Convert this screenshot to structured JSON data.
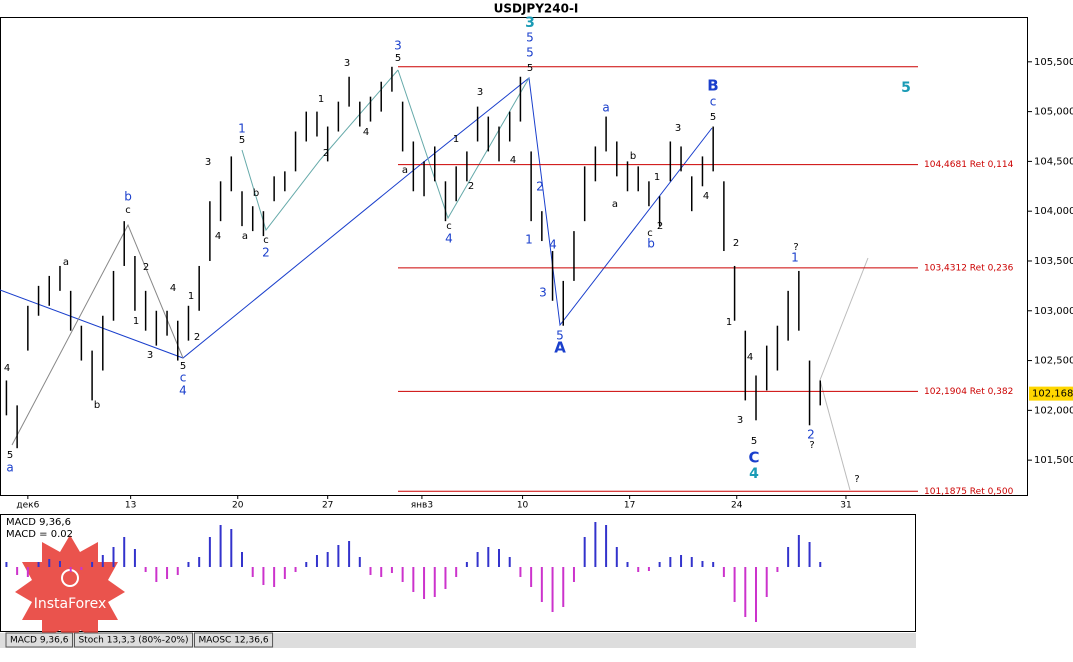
{
  "chart_data": [
    {
      "type": "ohlc",
      "title": "USDJPY240-I",
      "x": [
        -1,
        -0.5,
        0,
        0.5,
        1,
        1.5,
        2,
        2.5,
        3,
        3.5,
        4,
        4.5,
        5,
        5.5,
        6,
        6.5,
        7,
        7.5,
        8,
        8.5,
        9,
        9.5,
        10,
        10.5,
        11,
        11.5,
        12,
        12.5,
        13,
        13.5,
        14,
        14.5,
        15,
        15.5,
        16,
        16.5,
        17,
        17.5,
        18,
        18.5,
        19,
        19.5,
        20,
        20.5,
        21,
        21.5,
        22,
        22.5,
        23,
        23.5,
        24,
        24.5,
        25,
        25.5,
        26,
        26.5,
        27,
        27.5,
        28,
        28.5,
        29,
        29.5,
        30,
        30.5,
        31,
        31.5,
        32,
        32.5,
        33,
        33.5,
        34,
        34.5,
        35,
        35.5,
        36,
        36.5,
        37
      ],
      "low": [
        101.95,
        101.62,
        102.6,
        102.95,
        103.05,
        103.2,
        102.8,
        102.5,
        102.1,
        102.4,
        102.9,
        103.45,
        103.0,
        102.8,
        102.65,
        102.75,
        102.5,
        102.7,
        103.0,
        103.5,
        103.9,
        104.2,
        103.85,
        103.8,
        103.75,
        104.1,
        104.2,
        104.4,
        104.7,
        104.75,
        104.5,
        104.8,
        105.05,
        104.85,
        104.9,
        105.0,
        105.2,
        104.6,
        104.2,
        104.15,
        104.3,
        103.9,
        104.1,
        104.3,
        104.7,
        104.6,
        104.5,
        104.7,
        104.9,
        103.9,
        103.7,
        103.1,
        102.85,
        103.3,
        103.9,
        104.3,
        104.6,
        104.35,
        104.2,
        104.2,
        104.05,
        103.85,
        104.3,
        104.4,
        104.0,
        104.25,
        104.4,
        103.6,
        102.9,
        102.1,
        101.9,
        102.2,
        102.4,
        102.7,
        102.8,
        101.85,
        102.05
      ],
      "high": [
        102.3,
        102.05,
        103.05,
        103.25,
        103.35,
        103.45,
        103.2,
        102.85,
        102.6,
        102.95,
        103.4,
        103.9,
        103.55,
        103.2,
        103.0,
        103.0,
        102.9,
        103.05,
        103.45,
        104.1,
        104.3,
        104.55,
        104.2,
        104.05,
        104.0,
        104.35,
        104.4,
        104.8,
        105.0,
        105.0,
        104.85,
        105.1,
        105.35,
        105.1,
        105.15,
        105.3,
        105.45,
        105.1,
        104.7,
        104.5,
        104.65,
        104.3,
        104.45,
        104.6,
        105.05,
        104.95,
        104.85,
        105.0,
        105.35,
        104.6,
        104.0,
        103.6,
        103.3,
        103.8,
        104.45,
        104.65,
        104.95,
        104.7,
        104.5,
        104.45,
        104.3,
        104.15,
        104.7,
        104.65,
        104.35,
        104.55,
        104.85,
        104.3,
        103.45,
        102.8,
        102.35,
        102.65,
        102.85,
        103.2,
        103.4,
        102.5,
        102.3
      ],
      "color": "#000000",
      "xlim": [
        -1.3,
        46.7
      ],
      "xticks": [
        {
          "value": 0,
          "label": "дек6"
        },
        {
          "value": 4.8,
          "label": "13"
        },
        {
          "value": 9.8,
          "label": "20"
        },
        {
          "value": 14,
          "label": "27"
        },
        {
          "value": 18.4,
          "label": "янв3"
        },
        {
          "value": 23.1,
          "label": "10"
        },
        {
          "value": 28.1,
          "label": "17"
        },
        {
          "value": 33.1,
          "label": "24"
        },
        {
          "value": 38.2,
          "label": "31"
        }
      ],
      "ylim": [
        101.15,
        105.95
      ],
      "yticks": [
        {
          "value": 101.5,
          "label": "101,500"
        },
        {
          "value": 102,
          "label": "102,000"
        },
        {
          "value": 102.5,
          "label": "102,500"
        },
        {
          "value": 103,
          "label": "103,000"
        },
        {
          "value": 103.5,
          "label": "103,500"
        },
        {
          "value": 104,
          "label": "104,000"
        },
        {
          "value": 104.5,
          "label": "104,500"
        },
        {
          "value": 105,
          "label": "105,000"
        },
        {
          "value": 105.5,
          "label": "105,500"
        }
      ],
      "last_price": {
        "value": 102.168,
        "label": "102,168"
      },
      "levels": [
        {
          "value": 105.45
        },
        {
          "value": 104.4681,
          "label": "104,4681 Ret 0,114"
        },
        {
          "value": 103.4312,
          "label": "103,4312 Ret 0,236"
        },
        {
          "value": 102.1904,
          "label": "102,1904 Ret 0,382"
        },
        {
          "value": 101.1875,
          "label": "101,1875 Ret 0,500"
        }
      ],
      "level_color": "#cc0000",
      "annotations": [
        "4",
        "5",
        "a",
        "a",
        "b",
        "b",
        "c",
        "2",
        "1",
        "3",
        "4",
        "5",
        "c",
        "4",
        "1",
        "2",
        "3",
        "4",
        "1",
        "5",
        "a",
        "b",
        "c",
        "2",
        "1",
        "2",
        "3",
        "4",
        "3",
        "5",
        "a",
        "1",
        "2",
        "c",
        "4",
        "3",
        "4",
        "3",
        "5",
        "5",
        "5",
        "2",
        "1",
        "4",
        "3",
        "5",
        "A",
        "a",
        "a",
        "b",
        "1",
        "c",
        "b",
        "2",
        "3",
        "4",
        "B",
        "c",
        "5",
        "2",
        "1",
        "4",
        "3",
        "5",
        "C",
        "4",
        "?",
        "1",
        "2",
        "?",
        "?",
        "5"
      ]
    },
    {
      "type": "bar",
      "title": "MACD 9,36,6",
      "subtitle": "MACD = 0.02",
      "x": [
        -1,
        -0.5,
        0,
        0.5,
        1,
        1.5,
        2,
        2.5,
        3,
        3.5,
        4,
        4.5,
        5,
        5.5,
        6,
        6.5,
        7,
        7.5,
        8,
        8.5,
        9,
        9.5,
        10,
        10.5,
        11,
        11.5,
        12,
        12.5,
        13,
        13.5,
        14,
        14.5,
        15,
        15.5,
        16,
        16.5,
        17,
        17.5,
        18,
        18.5,
        19,
        19.5,
        20,
        20.5,
        21,
        21.5,
        22,
        22.5,
        23,
        23.5,
        24,
        24.5,
        25,
        25.5,
        26,
        26.5,
        27,
        27.5,
        28,
        28.5,
        29,
        29.5,
        30,
        30.5,
        31,
        31.5,
        32,
        32.5,
        33,
        33.5,
        34,
        34.5,
        35,
        35.5,
        36,
        36.5,
        37
      ],
      "values": [
        0.05,
        -0.08,
        -0.1,
        0.05,
        0.08,
        0.06,
        -0.05,
        -0.03,
        0.05,
        0.12,
        0.2,
        0.3,
        0.18,
        -0.05,
        -0.15,
        -0.12,
        -0.08,
        0.05,
        0.1,
        0.3,
        0.42,
        0.38,
        0.15,
        -0.1,
        -0.18,
        -0.2,
        -0.12,
        -0.05,
        0.05,
        0.12,
        0.15,
        0.22,
        0.26,
        0.1,
        -0.08,
        -0.1,
        -0.06,
        -0.15,
        -0.25,
        -0.32,
        -0.3,
        -0.22,
        -0.1,
        0.05,
        0.15,
        0.2,
        0.18,
        0.1,
        -0.1,
        -0.2,
        -0.35,
        -0.45,
        -0.4,
        -0.15,
        0.3,
        0.45,
        0.42,
        0.2,
        0.05,
        -0.05,
        -0.04,
        0.05,
        0.1,
        0.12,
        0.1,
        0.06,
        0.05,
        -0.1,
        -0.35,
        -0.5,
        -0.55,
        -0.3,
        -0.05,
        0.2,
        0.32,
        0.25,
        0.05
      ],
      "color": "#3333cc",
      "negative_color": "#cc33cc",
      "xlim": [
        -1.3,
        46.7
      ],
      "tabs": [
        "MACD 9,36,6",
        "Stoch 13,3,3 (80%-20%)",
        "MAOSC 12,36,6"
      ],
      "logo": "InstaForex"
    }
  ]
}
